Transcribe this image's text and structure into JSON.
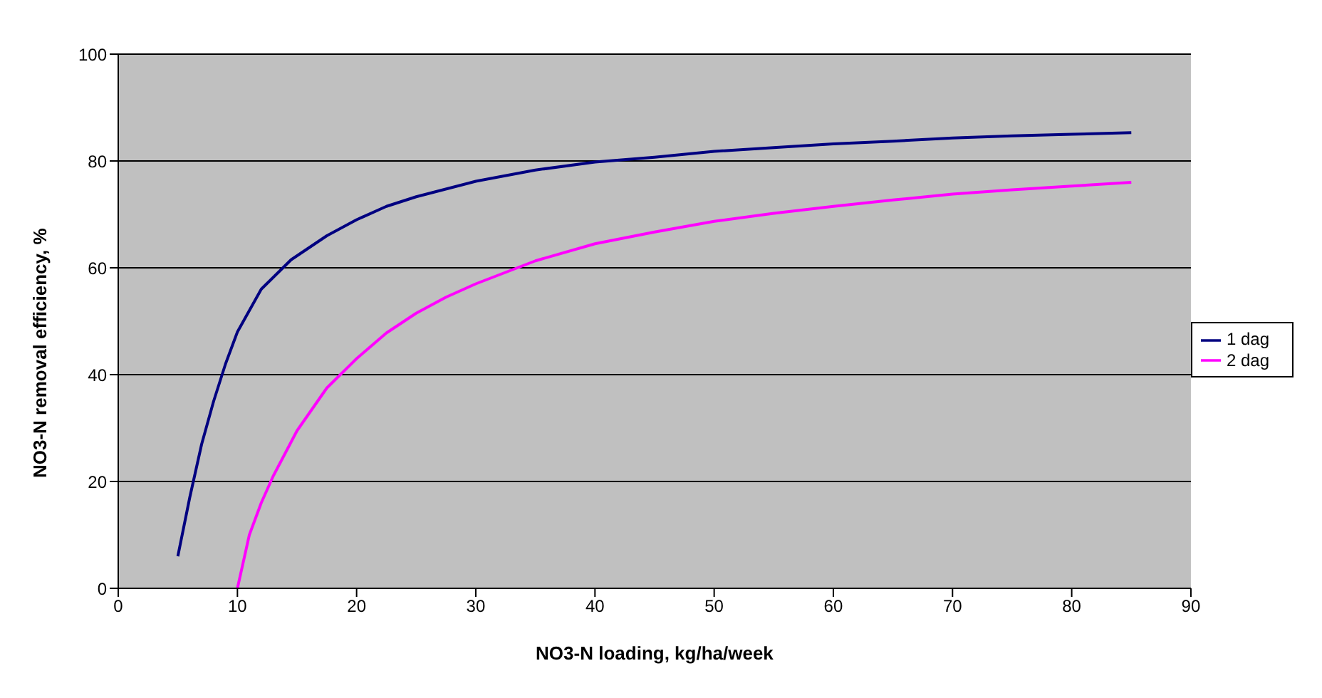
{
  "chart_data": {
    "type": "line",
    "xlabel": "NO3-N loading, kg/ha/week",
    "ylabel": "NO3-N removal efficiency, %",
    "xlim": [
      0,
      90
    ],
    "xticks": [
      0,
      10,
      20,
      30,
      40,
      50,
      60,
      70,
      80,
      90
    ],
    "ylim": [
      0,
      100
    ],
    "yticks": [
      0,
      20,
      40,
      60,
      80,
      100
    ],
    "grid": "y",
    "legend": "right",
    "marker": "none",
    "line_style": "solid",
    "series": [
      {
        "name": "1 dag",
        "color": "#000080",
        "x": [
          5,
          6,
          7,
          8,
          9,
          10,
          11,
          12,
          14.5,
          17.5,
          20,
          22.5,
          25,
          30,
          35,
          40,
          45,
          50,
          55,
          60,
          65,
          70,
          75,
          80,
          85
        ],
        "values": [
          6,
          17,
          27,
          35,
          42,
          48,
          52,
          56,
          61.5,
          66,
          69,
          71.5,
          73.3,
          76.2,
          78.3,
          79.8,
          80.7,
          81.8,
          82.5,
          83.2,
          83.7,
          84.3,
          84.7,
          85,
          85.3
        ]
      },
      {
        "name": "2 dag",
        "color": "#ff00ff",
        "x": [
          10,
          11,
          12,
          13,
          15,
          17.5,
          20,
          22.5,
          25,
          27.5,
          30,
          35,
          40,
          45,
          50,
          55,
          60,
          65,
          70,
          75,
          80,
          85
        ],
        "values": [
          0,
          10,
          16,
          21,
          29.5,
          37.5,
          43,
          47.8,
          51.5,
          54.5,
          57,
          61.3,
          64.5,
          66.7,
          68.7,
          70.2,
          71.5,
          72.7,
          73.8,
          74.6,
          75.3,
          76
        ]
      }
    ]
  }
}
